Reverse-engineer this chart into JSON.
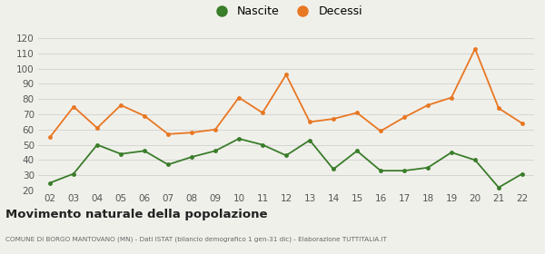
{
  "years": [
    "02",
    "03",
    "04",
    "05",
    "06",
    "07",
    "08",
    "09",
    "10",
    "11",
    "12",
    "13",
    "14",
    "15",
    "16",
    "17",
    "18",
    "19",
    "20",
    "21",
    "22"
  ],
  "nascite": [
    25,
    31,
    50,
    44,
    46,
    37,
    42,
    46,
    54,
    50,
    43,
    53,
    34,
    46,
    33,
    33,
    35,
    45,
    40,
    22,
    31
  ],
  "decessi": [
    55,
    75,
    61,
    76,
    69,
    57,
    58,
    60,
    81,
    71,
    96,
    65,
    67,
    71,
    59,
    68,
    76,
    81,
    113,
    74,
    64
  ],
  "nascite_color": "#3a7d2a",
  "decessi_color": "#e87722",
  "ylim": [
    20,
    120
  ],
  "yticks": [
    20,
    30,
    40,
    50,
    60,
    70,
    80,
    90,
    100,
    110,
    120
  ],
  "title": "Movimento naturale della popolazione",
  "subtitle": "COMUNE DI BORGO MANTOVANO (MN) - Dati ISTAT (bilancio demografico 1 gen-31 dic) - Elaborazione TUTTITALIA.IT",
  "legend_nascite": "Nascite",
  "legend_decessi": "Decessi",
  "bg_color": "#f0f0eb",
  "grid_color": "#d0d0d0"
}
